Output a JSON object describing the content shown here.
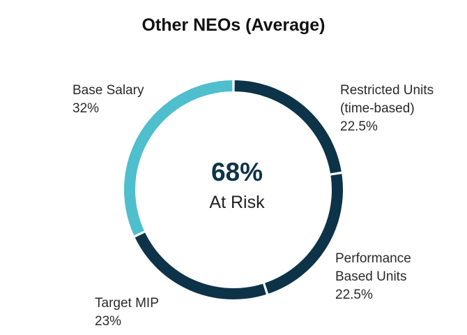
{
  "chart_data": {
    "type": "pie",
    "title": "Other NEOs (Average)",
    "donut": true,
    "center": {
      "value": "68%",
      "caption": "At Risk"
    },
    "slices": [
      {
        "name": "Restricted Units (time-based)",
        "label_lines": [
          "Restricted Units",
          "(time-based)"
        ],
        "value": 22.5,
        "value_text": "22.5%",
        "color": "#0d3349"
      },
      {
        "name": "Performance Based Units",
        "label_lines": [
          "Performance",
          "Based Units"
        ],
        "value": 22.5,
        "value_text": "22.5%",
        "color": "#0d3349"
      },
      {
        "name": "Target MIP",
        "label_lines": [
          "Target MIP"
        ],
        "value": 23,
        "value_text": "23%",
        "color": "#0d3349"
      },
      {
        "name": "Base Salary",
        "label_lines": [
          "Base Salary"
        ],
        "value": 32,
        "value_text": "32%",
        "color": "#4fbecd"
      }
    ]
  }
}
